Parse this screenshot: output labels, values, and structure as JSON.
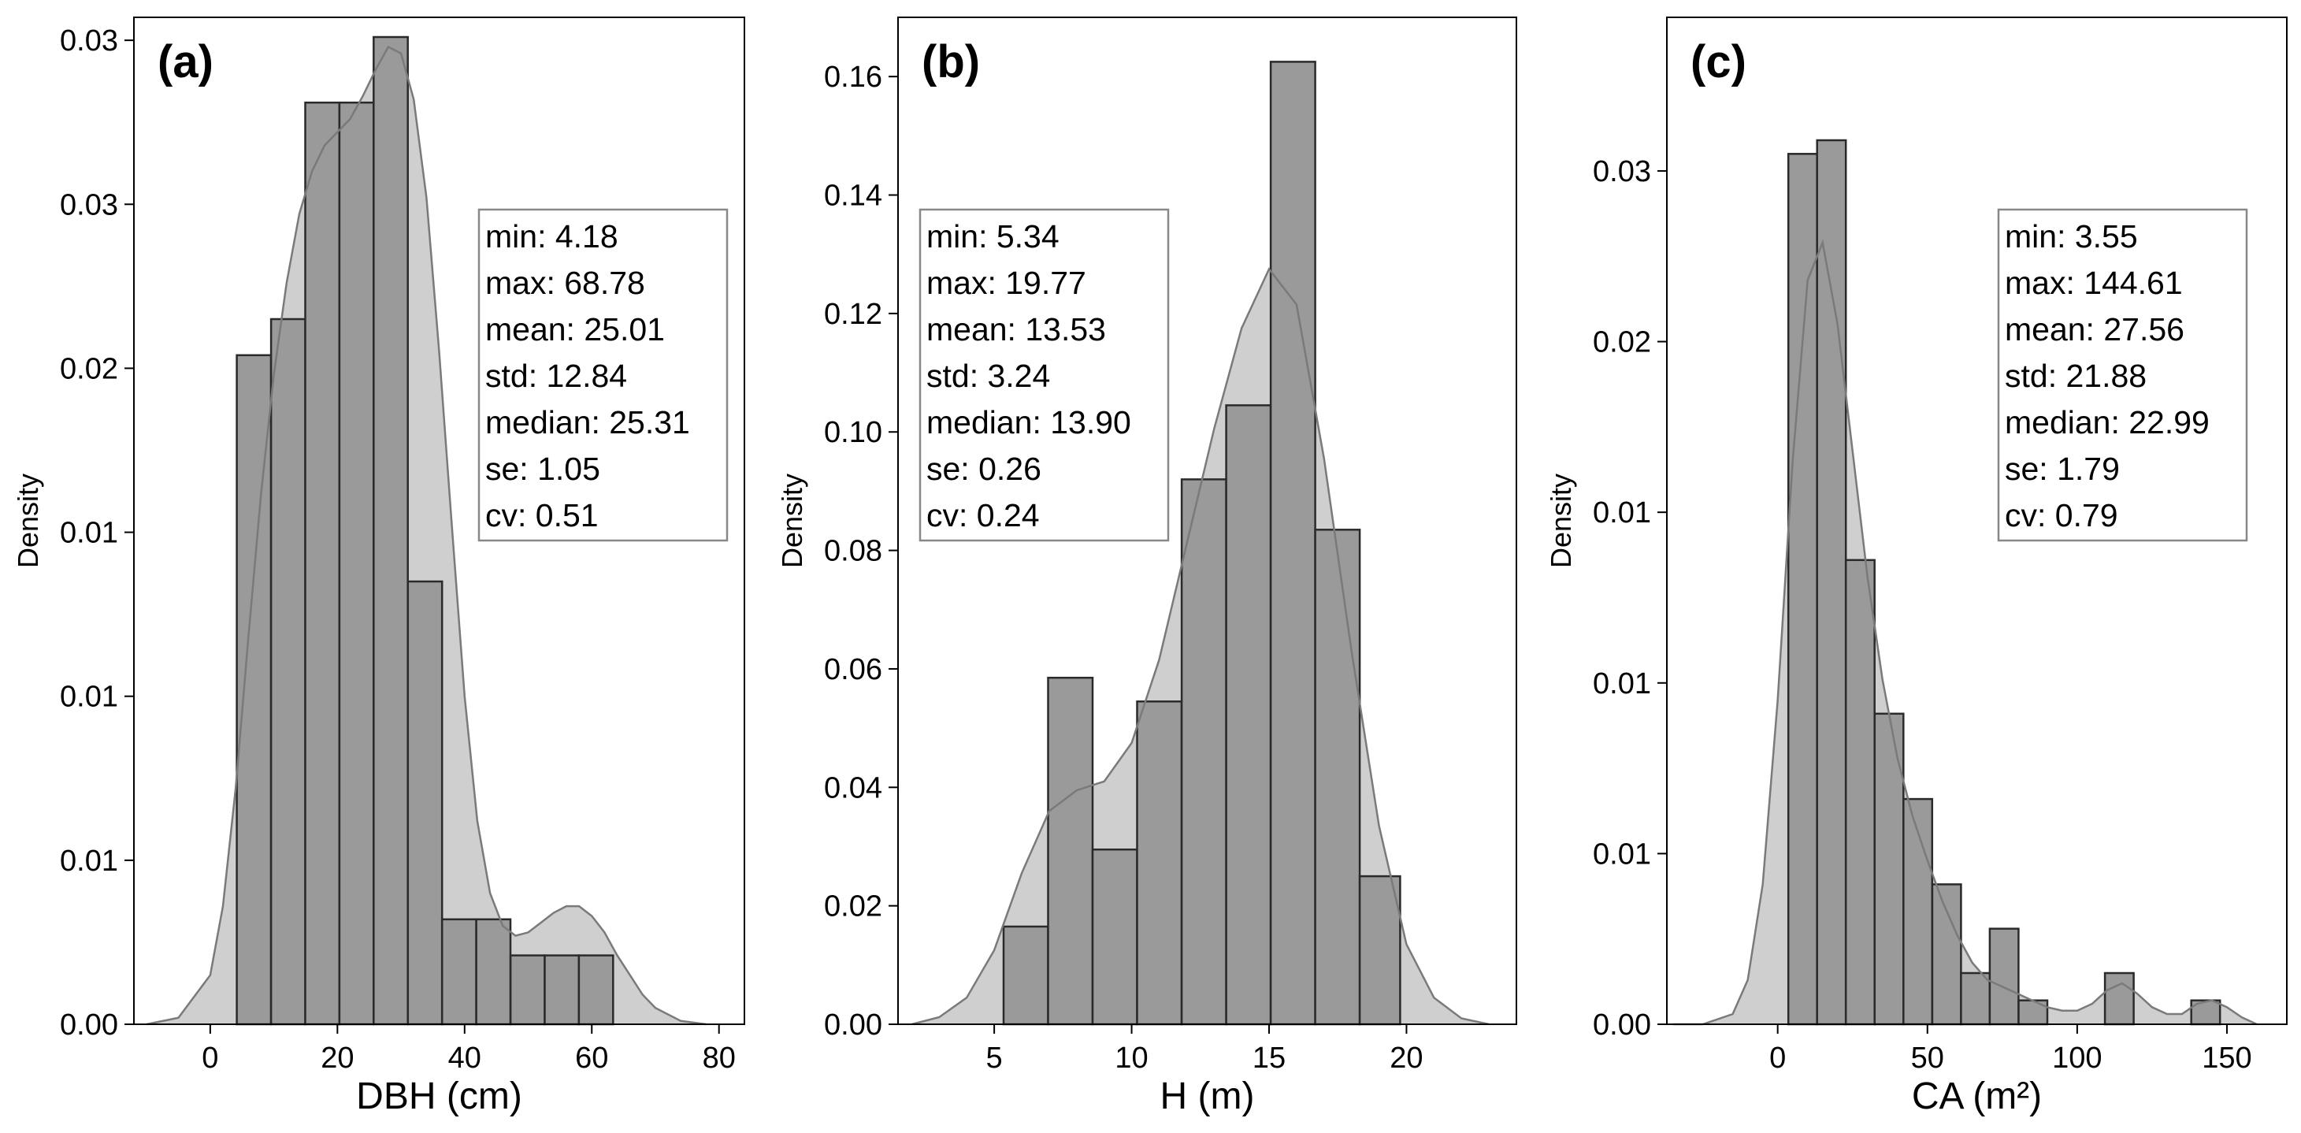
{
  "chart_data": [
    {
      "type": "histogram",
      "panel": "(a)",
      "xlabel": "DBH (cm)",
      "ylabel": "Density",
      "xlim": [
        -12,
        84
      ],
      "ylim": [
        0,
        0.0307
      ],
      "xticks": [
        0,
        20,
        40,
        60,
        80
      ],
      "yticks": [
        0,
        0.005,
        0.01,
        0.015,
        0.02,
        0.025,
        0.03
      ],
      "ytick_labels": [
        "0.00",
        "0.01",
        "0.01",
        "0.01",
        "0.02",
        "0.03",
        "0.03"
      ],
      "bin_edges": [
        4.18,
        9.56,
        14.94,
        20.32,
        25.7,
        31.08,
        36.46,
        41.84,
        47.22,
        52.6,
        57.98,
        63.36,
        68.78
      ],
      "values": [
        0.0204,
        0.0215,
        0.0281,
        0.0281,
        0.0301,
        0.0135,
        0.0032,
        0.0032,
        0.0021,
        0.0021,
        0.0021,
        0.0
      ],
      "kde": {
        "x": [
          -10,
          -5,
          0,
          2,
          4,
          6,
          8,
          10,
          12,
          14,
          16,
          18,
          20,
          22,
          24,
          26,
          28,
          30,
          32,
          34,
          36,
          38,
          40,
          42,
          44,
          46,
          48,
          50,
          52,
          54,
          56,
          58,
          60,
          62,
          64,
          66,
          68,
          70,
          74,
          78
        ],
        "y": [
          0.0,
          0.0002,
          0.0015,
          0.0036,
          0.0072,
          0.0118,
          0.0162,
          0.0198,
          0.0226,
          0.0247,
          0.026,
          0.0268,
          0.0272,
          0.0276,
          0.0283,
          0.0291,
          0.0298,
          0.0296,
          0.0282,
          0.0252,
          0.0205,
          0.0152,
          0.01,
          0.0062,
          0.004,
          0.003,
          0.0027,
          0.0028,
          0.0031,
          0.0034,
          0.0036,
          0.0036,
          0.0033,
          0.0028,
          0.0021,
          0.0015,
          0.0009,
          0.0005,
          0.0001,
          0.0
        ]
      },
      "stats": [
        "min: 4.18",
        "max: 68.78",
        "mean: 25.01",
        "std: 12.84",
        "median: 25.31",
        "se: 1.05",
        "cv: 0.51"
      ],
      "stats_position": "upper-right"
    },
    {
      "type": "histogram",
      "panel": "(b)",
      "xlabel": "H (m)",
      "ylabel": "Density",
      "xlim": [
        1.5,
        24
      ],
      "ylim": [
        0,
        0.17
      ],
      "xticks": [
        5,
        10,
        15,
        20
      ],
      "yticks": [
        0.0,
        0.02,
        0.04,
        0.06,
        0.08,
        0.1,
        0.12,
        0.14,
        0.16
      ],
      "ytick_labels": [
        "0.00",
        "0.02",
        "0.04",
        "0.06",
        "0.08",
        "0.10",
        "0.12",
        "0.14",
        "0.16"
      ],
      "bin_edges": [
        5.34,
        6.96,
        8.58,
        10.2,
        11.82,
        13.44,
        15.06,
        16.68,
        18.3,
        19.77
      ],
      "values": [
        0.0165,
        0.0585,
        0.0295,
        0.0545,
        0.092,
        0.1045,
        0.1625,
        0.0835,
        0.025
      ],
      "kde": {
        "x": [
          2,
          3,
          4,
          5,
          6,
          7,
          8,
          9,
          10,
          11,
          12,
          13,
          14,
          15,
          16,
          17,
          18,
          19,
          20,
          21,
          22,
          23
        ],
        "y": [
          0.0,
          0.0012,
          0.0045,
          0.0125,
          0.0255,
          0.036,
          0.0395,
          0.041,
          0.0475,
          0.0615,
          0.081,
          0.1005,
          0.1175,
          0.1275,
          0.1215,
          0.0955,
          0.063,
          0.0335,
          0.0135,
          0.0045,
          0.001,
          0.0
        ]
      },
      "stats": [
        "min: 5.34",
        "max: 19.77",
        "mean: 13.53",
        "std: 3.24",
        "median: 13.90",
        "se: 0.26",
        "cv: 0.24"
      ],
      "stats_position": "upper-left"
    },
    {
      "type": "histogram",
      "panel": "(c)",
      "xlabel": "CA (m²)",
      "ylabel": "Density",
      "xlim": [
        -37,
        170
      ],
      "ylim": [
        0,
        0.0295
      ],
      "xticks": [
        0,
        50,
        100,
        150
      ],
      "yticks": [
        0,
        0.005,
        0.01,
        0.015,
        0.02,
        0.025
      ],
      "ytick_labels": [
        "0.00",
        "0.01",
        "0.01",
        "0.01",
        "0.02",
        "0.03"
      ],
      "bin_edges": [
        3.55,
        13.16,
        22.77,
        32.38,
        41.99,
        51.6,
        61.21,
        70.82,
        80.43,
        90.04,
        99.65,
        109.26,
        118.87,
        128.48,
        138.09,
        147.7
      ],
      "values": [
        0.0255,
        0.0259,
        0.0136,
        0.0091,
        0.0066,
        0.0041,
        0.0015,
        0.0028,
        0.0007,
        0.0,
        0.0,
        0.0015,
        0.0,
        0.0,
        0.0007
      ],
      "kde": {
        "x": [
          -35,
          -25,
          -15,
          -10,
          -5,
          0,
          5,
          10,
          15,
          20,
          25,
          30,
          35,
          40,
          45,
          50,
          55,
          60,
          65,
          70,
          75,
          80,
          85,
          90,
          95,
          100,
          105,
          110,
          115,
          120,
          125,
          130,
          135,
          140,
          145,
          150,
          155,
          160
        ],
        "y": [
          0.0,
          0.0,
          0.0003,
          0.0013,
          0.0041,
          0.0095,
          0.0165,
          0.0218,
          0.0229,
          0.0205,
          0.0168,
          0.0131,
          0.0101,
          0.0078,
          0.0061,
          0.0048,
          0.0036,
          0.0026,
          0.0018,
          0.0013,
          0.0011,
          0.0009,
          0.0007,
          0.0005,
          0.0004,
          0.0004,
          0.0006,
          0.001,
          0.0012,
          0.0009,
          0.0005,
          0.0003,
          0.0003,
          0.0006,
          0.0007,
          0.0005,
          0.0002,
          0.0
        ]
      },
      "stats": [
        "min: 3.55",
        "max: 144.61",
        "mean: 27.56",
        "std: 21.88",
        "median: 22.99",
        "se: 1.79",
        "cv: 0.79"
      ],
      "stats_position": "upper-right"
    }
  ],
  "colors": {
    "bar_fill": "#9a9a9a",
    "bar_edge": "#2a2a2a",
    "kde_fill": "#cfcfcf",
    "kde_line": "#7a7a7a",
    "frame": "#000000",
    "stats_border": "#888888"
  }
}
